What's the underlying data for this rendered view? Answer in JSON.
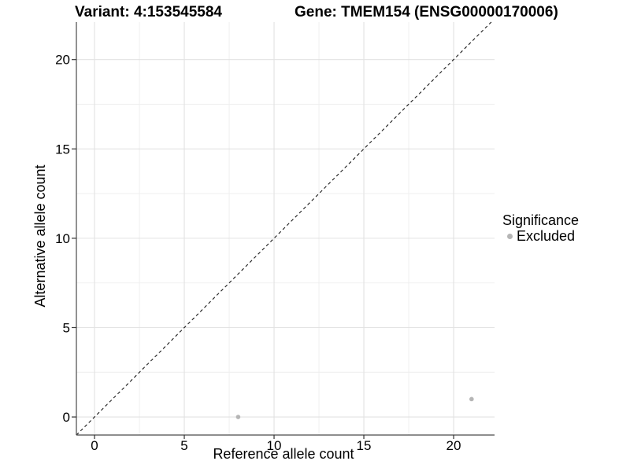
{
  "header": {
    "variant_label": "Variant: 4:153545584",
    "gene_label": "Gene: TMEM154 (ENSG00000170006)"
  },
  "chart_data": {
    "type": "scatter",
    "title_left": "Variant: 4:153545584",
    "title_right": "Gene: TMEM154 (ENSG00000170006)",
    "xlabel": "Reference allele count",
    "ylabel": "Alternative allele count",
    "xlim": [
      -1.01,
      22.28
    ],
    "ylim": [
      -1.01,
      22.1
    ],
    "x_major_ticks": [
      0,
      5,
      10,
      15,
      20
    ],
    "y_major_ticks": [
      0,
      5,
      10,
      15,
      20
    ],
    "x_minor_ticks": [
      2.5,
      7.5,
      12.5,
      17.5
    ],
    "y_minor_ticks": [
      2.5,
      7.5,
      12.5,
      17.5
    ],
    "grid": true,
    "identity_line": {
      "type": "y=x",
      "style": "dashed"
    },
    "points": [
      {
        "x": 8,
        "y": 0,
        "significance": "Excluded"
      },
      {
        "x": 21,
        "y": 1,
        "significance": "Excluded"
      }
    ],
    "legend": {
      "title": "Significance",
      "position": "right",
      "items": [
        {
          "label": "Excluded",
          "color": "#b5b5b5"
        }
      ]
    }
  },
  "colors": {
    "background": "#ffffff",
    "point": "#b5b5b5",
    "grid_major": "#e2e2e2",
    "grid_minor": "#eeeeee",
    "axis_line": "#4a4a4a",
    "tick_mark": "#333333",
    "tick_label": "#1a1a1a",
    "identity_line": "#1a1a1a"
  }
}
